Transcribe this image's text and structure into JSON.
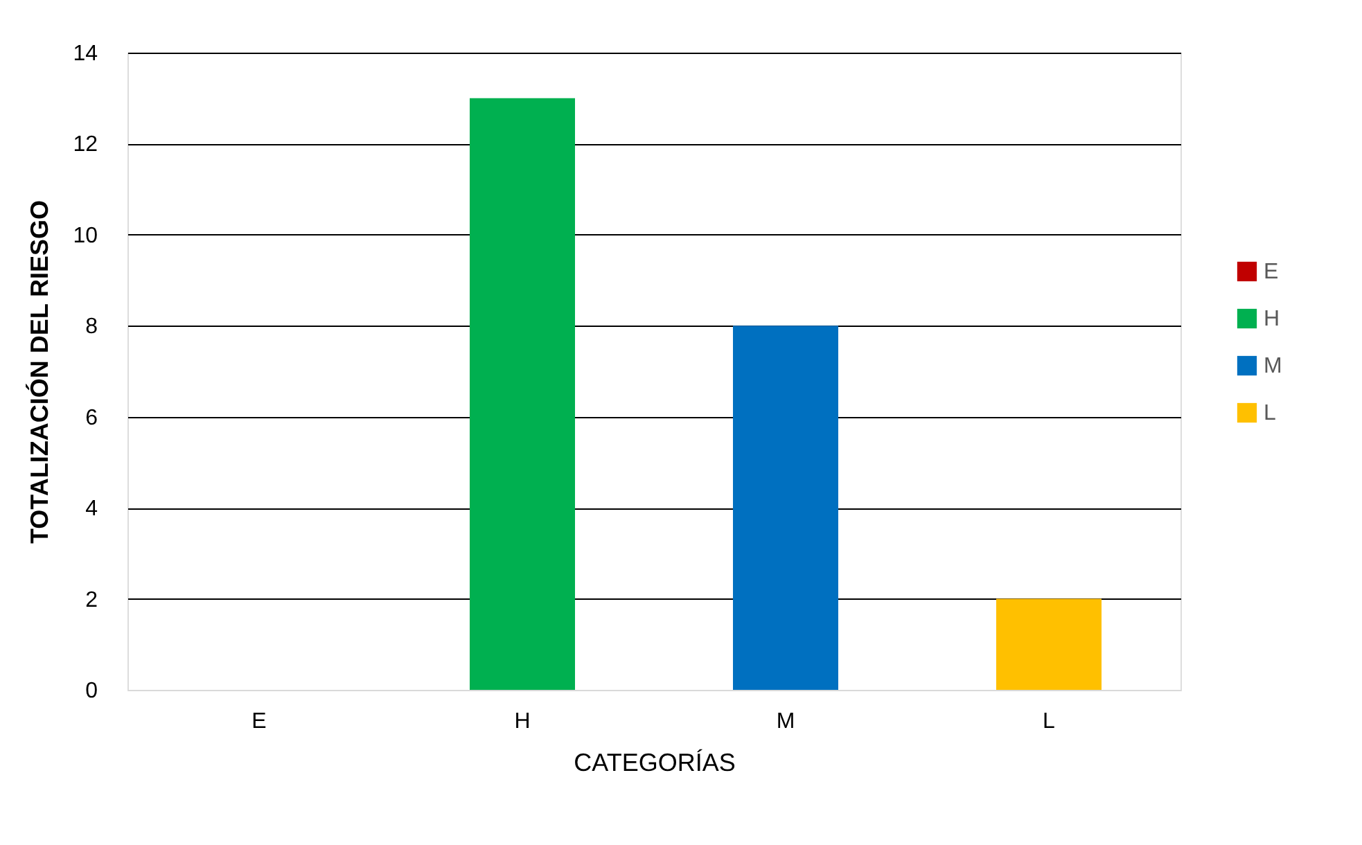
{
  "chart_data": {
    "type": "bar",
    "xlabel": "CATEGORÍAS",
    "ylabel": "TOTALIZACIÓN DEL RIESGO",
    "categories": [
      "E",
      "H",
      "M",
      "L"
    ],
    "series": [
      {
        "name": "E",
        "color": "#c00000",
        "values": [
          0,
          null,
          null,
          null
        ]
      },
      {
        "name": "H",
        "color": "#00b050",
        "values": [
          null,
          13,
          null,
          null
        ]
      },
      {
        "name": "M",
        "color": "#0070c0",
        "values": [
          null,
          null,
          8,
          null
        ]
      },
      {
        "name": "L",
        "color": "#ffc000",
        "values": [
          null,
          null,
          null,
          2
        ]
      }
    ],
    "ylim": [
      0,
      14
    ],
    "yticks": [
      0,
      2,
      4,
      6,
      8,
      10,
      12,
      14
    ],
    "grid": "y",
    "legend": "right"
  }
}
